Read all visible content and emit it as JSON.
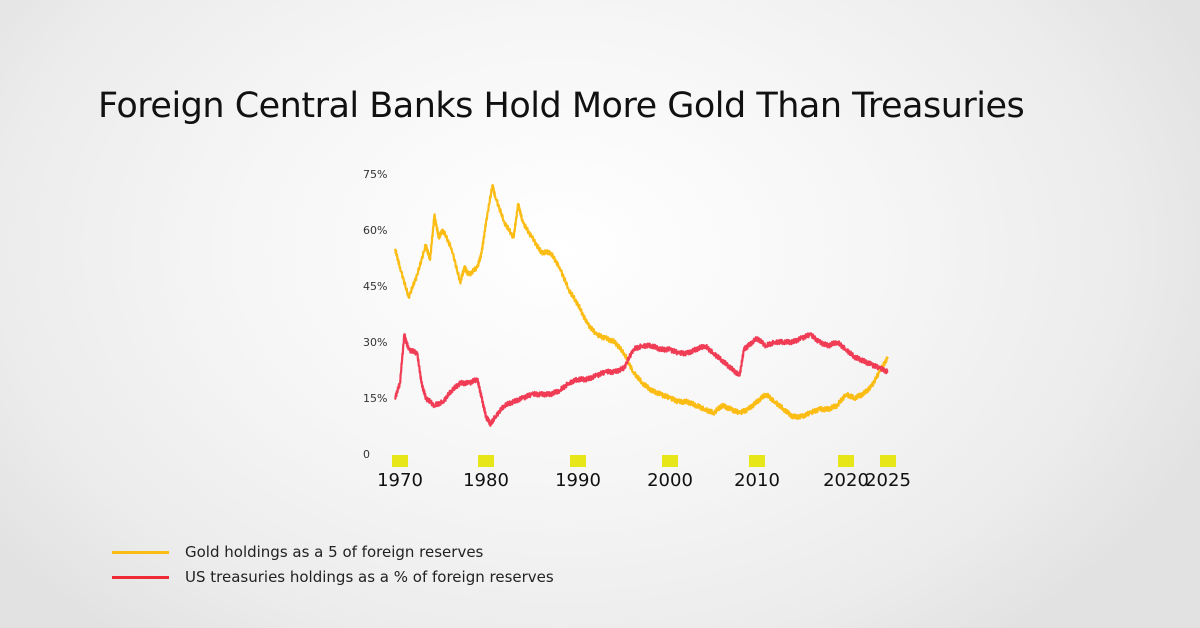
{
  "chart_data": {
    "type": "line",
    "title": "Foreign Central Banks Hold More Gold Than Treasuries",
    "xlabel": "",
    "ylabel": "",
    "ylim": [
      0,
      75
    ],
    "xlim": [
      1969.5,
      2025.2
    ],
    "yticks": [
      "0",
      "15%",
      "30%",
      "45%",
      "60%",
      "75%"
    ],
    "ytick_values": [
      0,
      15,
      30,
      45,
      60,
      75
    ],
    "xticks": [
      "1970",
      "1980",
      "1990",
      "2000",
      "2010",
      "2020",
      "2025"
    ],
    "xtick_values": [
      1970,
      1980,
      1990,
      2000,
      2010,
      2020,
      2025
    ],
    "tick_marker_color": "#e6e619",
    "grid": false,
    "legend": "bottom-left",
    "series": [
      {
        "name": "Gold holdings as a 5 of foreign reserves",
        "color": "#fbbc14",
        "x": [
          1969.5,
          1970,
          1971,
          1972,
          1973,
          1973.5,
          1974,
          1974.5,
          1975,
          1976,
          1977,
          1977.5,
          1978,
          1979,
          1979.5,
          1980,
          1980.7,
          1981,
          1982,
          1983,
          1983.5,
          1984,
          1985,
          1986,
          1987,
          1988,
          1989,
          1990,
          1991,
          1992,
          1993,
          1994,
          1995,
          1996,
          1997,
          1998,
          1999,
          2000,
          2001,
          2002,
          2003,
          2004,
          2005,
          2006,
          2007,
          2008,
          2009,
          2010,
          2011,
          2012,
          2013,
          2014,
          2015,
          2016,
          2017,
          2018,
          2019,
          2020,
          2021,
          2022,
          2023,
          2024,
          2025
        ],
        "y": [
          55,
          50,
          42,
          48,
          56,
          52,
          64,
          58,
          60,
          55,
          46,
          50,
          48,
          50,
          54,
          62,
          72,
          69,
          62,
          58,
          67,
          62,
          58,
          54,
          54,
          50,
          44,
          40,
          35,
          32,
          31,
          30,
          27,
          22,
          19,
          17,
          16,
          15,
          14,
          14,
          13,
          12,
          11,
          13,
          12,
          11,
          12,
          14,
          16,
          14,
          12,
          10,
          10,
          11,
          12,
          12,
          13,
          16,
          15,
          16,
          18,
          22,
          26
        ]
      },
      {
        "name": "US treasuries holdings as a % of foreign reserves",
        "color": "#f03c55",
        "x": [
          1969.5,
          1970,
          1970.5,
          1971,
          1972,
          1972.5,
          1973,
          1974,
          1975,
          1976,
          1977,
          1978,
          1979,
          1979.5,
          1980,
          1980.5,
          1981,
          1982,
          1983,
          1984,
          1985,
          1986,
          1987,
          1988,
          1989,
          1990,
          1991,
          1992,
          1993,
          1994,
          1995,
          1996,
          1997,
          1998,
          1999,
          2000,
          2001,
          2002,
          2003,
          2004,
          2005,
          2006,
          2007,
          2008,
          2008.5,
          2009,
          2010,
          2011,
          2012,
          2013,
          2014,
          2015,
          2016,
          2017,
          2018,
          2019,
          2020,
          2021,
          2022,
          2023,
          2024,
          2025
        ],
        "y": [
          15,
          19,
          32,
          28,
          27,
          19,
          15,
          13,
          14,
          17,
          19,
          19,
          20,
          15,
          10,
          8,
          10,
          13,
          14,
          15,
          16,
          16,
          16,
          17,
          19,
          20,
          20,
          21,
          22,
          22,
          23,
          28,
          29,
          29,
          28,
          28,
          27,
          27,
          28,
          29,
          27,
          25,
          23,
          21,
          28,
          29,
          31,
          29,
          30,
          30,
          30,
          31,
          32,
          30,
          29,
          30,
          28,
          26,
          25,
          24,
          23,
          22
        ]
      }
    ]
  }
}
